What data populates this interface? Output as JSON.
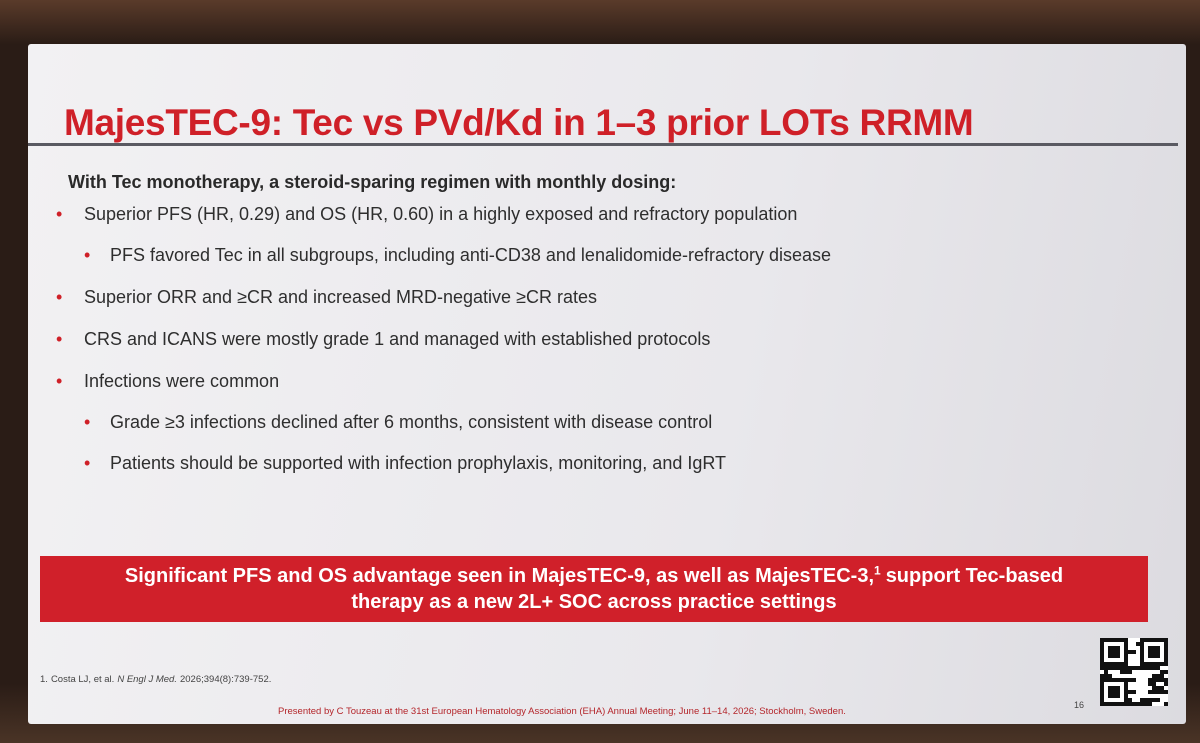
{
  "slide": {
    "title": "MajesTEC-9: Tec vs PVd/Kd in 1–3 prior LOTs RRMM",
    "intro": "With Tec monotherapy, a steroid-sparing regimen with monthly dosing:",
    "bullets": [
      {
        "text": "Superior PFS (HR, 0.29) and OS (HR, 0.60) in a highly exposed and refractory population",
        "sub": [
          "PFS favored Tec in all subgroups, including anti-CD38 and lenalidomide-refractory disease"
        ]
      },
      {
        "text": "Superior ORR and ≥CR and increased MRD-negative ≥CR rates"
      },
      {
        "text": "CRS and ICANS were mostly grade 1 and managed with established protocols"
      },
      {
        "text": "Infections were common",
        "sub": [
          "Grade ≥3 infections declined after 6 months, consistent with disease control",
          "Patients should be supported with infection prophylaxis, monitoring, and IgRT"
        ]
      }
    ],
    "conclusion": {
      "text_before": "Significant PFS and OS advantage seen in MajesTEC-9, as well as MajesTEC-3,",
      "superscript": "1",
      "text_after": "support Tec-based",
      "line2": "therapy as a new 2L+ SOC across practice settings"
    },
    "footnote": {
      "number": "1.",
      "authors": "Costa LJ, et al.",
      "journal": "N Engl J Med.",
      "citation": "2026;394(8):739-752."
    },
    "footer": "Presented by C Touzeau at the 31st European Hematology Association (EHA) Annual Meeting; June 11–14, 2026; Stockholm, Sweden.",
    "page_number": "16"
  }
}
